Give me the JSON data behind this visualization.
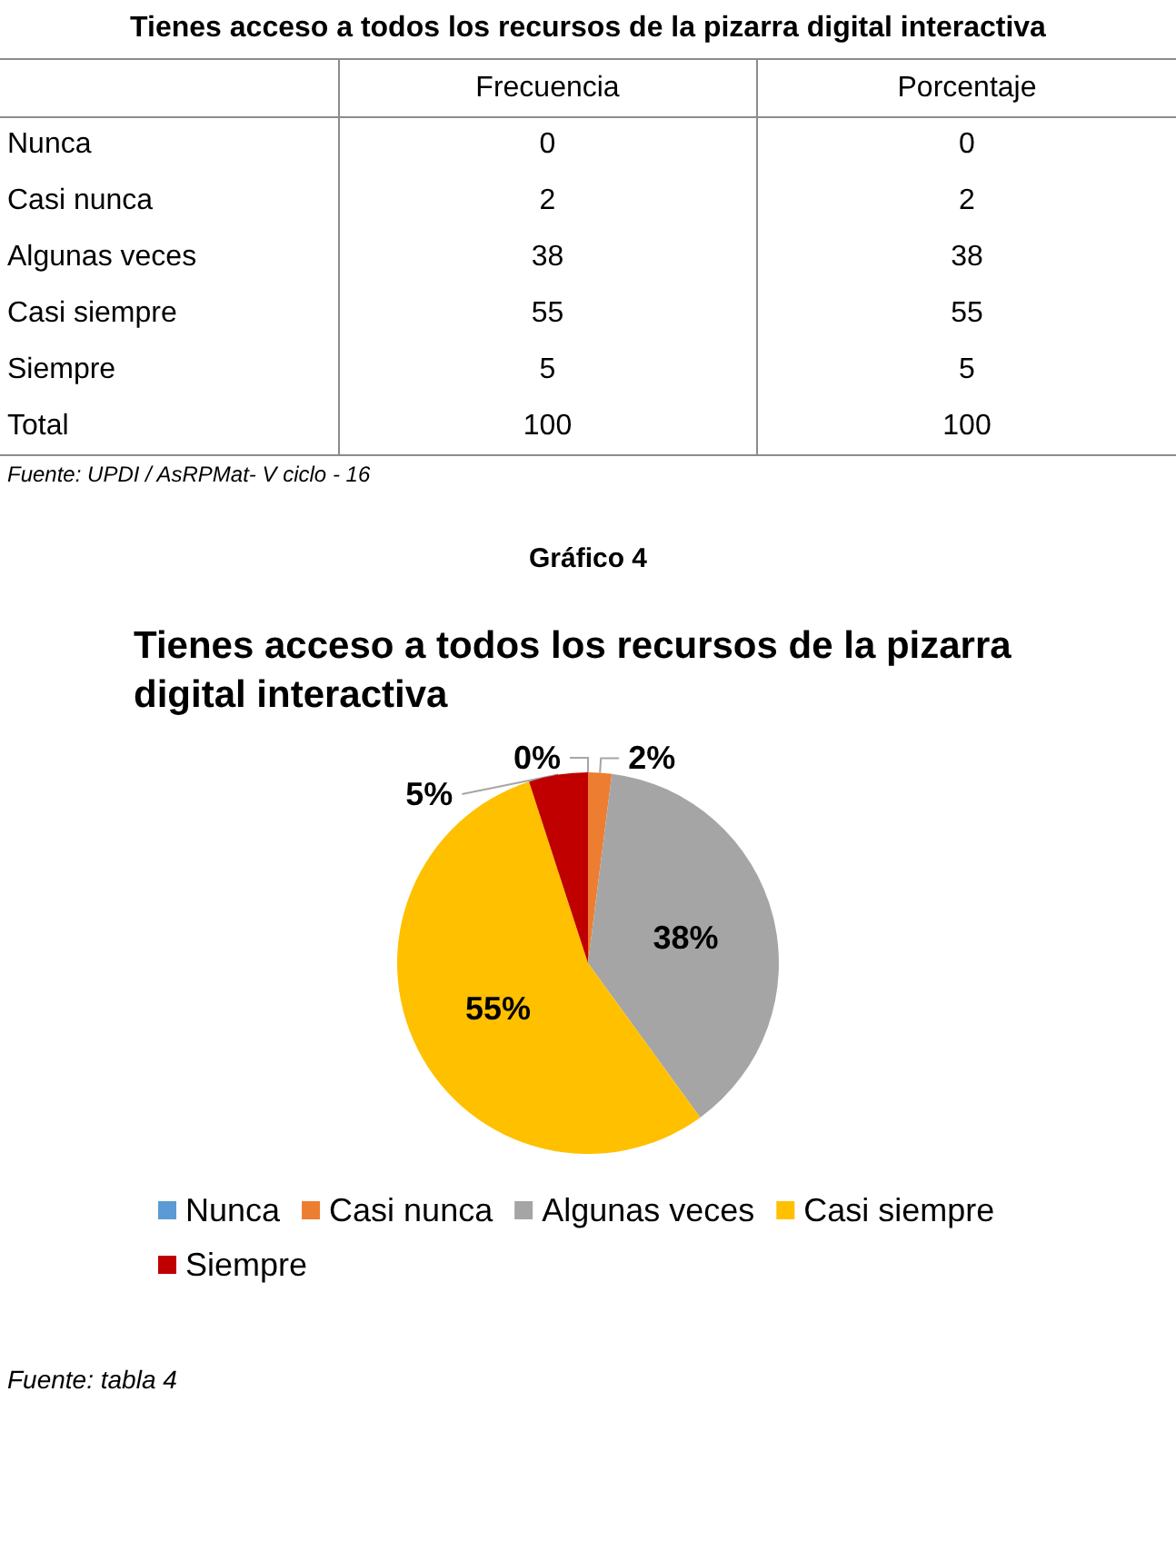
{
  "chart_data": [
    {
      "type": "other",
      "title": "Tienes acceso a todos los recursos de la pizarra digital interactiva",
      "categories": [
        "Nunca",
        "Casi nunca",
        "Algunas veces",
        "Casi siempre",
        "Siempre",
        "Total"
      ],
      "series": [
        {
          "name": "Frecuencia",
          "values": [
            0,
            2,
            38,
            55,
            5,
            100
          ]
        },
        {
          "name": "Porcentaje",
          "values": [
            0,
            2,
            38,
            55,
            5,
            100
          ]
        }
      ],
      "data_labels": true,
      "annotations": [
        "Fuente: UPDI / AsRPMat- V ciclo - 16"
      ]
    },
    {
      "type": "pie",
      "title": "Tienes acceso a todos los recursos de la pizarra digital interactiva",
      "categories": [
        "Nunca",
        "Casi nunca",
        "Algunas veces",
        "Casi siempre",
        "Siempre"
      ],
      "values": [
        0,
        2,
        38,
        55,
        5
      ],
      "colors": [
        "#5b9bd5",
        "#ed7d31",
        "#a5a5a5",
        "#ffc000",
        "#c00000"
      ],
      "value_labels": [
        "0%",
        "2%",
        "38%",
        "55%",
        "5%"
      ],
      "legend": "bottom",
      "annotations": [
        "Gráfico 4",
        "Fuente: tabla 4"
      ]
    }
  ]
}
